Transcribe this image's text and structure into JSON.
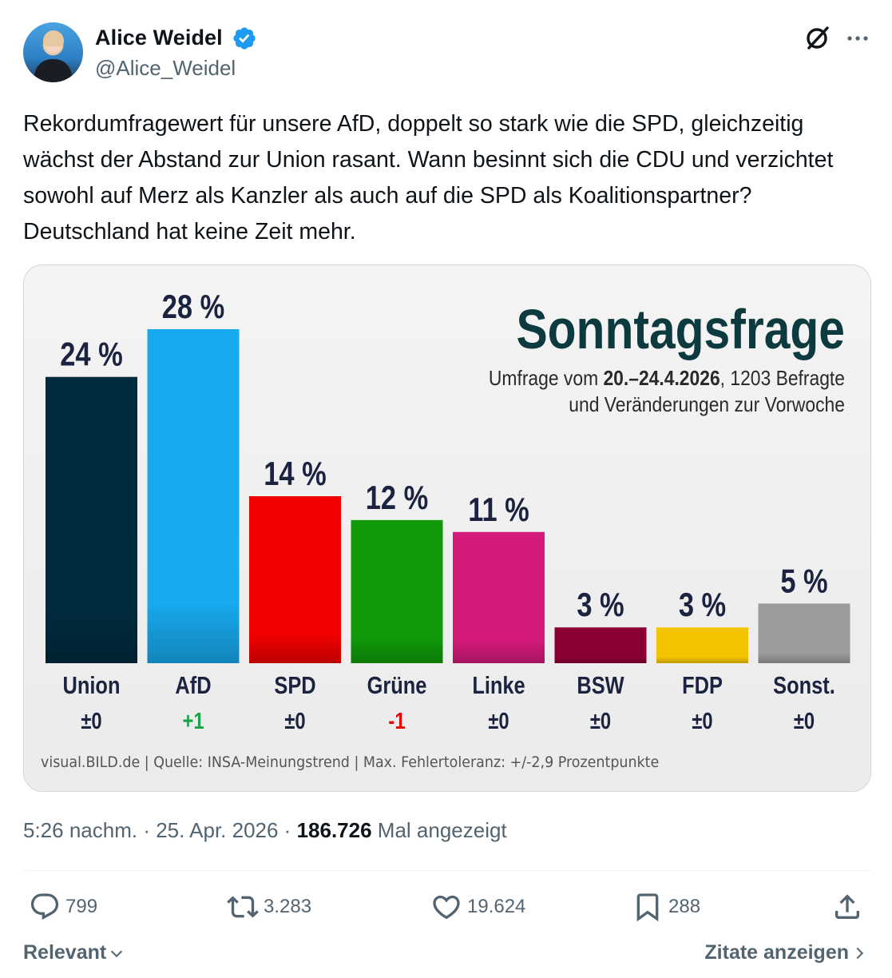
{
  "author": {
    "name": "Alice Weidel",
    "handle": "@Alice_Weidel"
  },
  "tweet": {
    "text": "Rekordumfragewert für unsere AfD, doppelt so stark wie die SPD, gleichzeitig wächst der Abstand zur Union rasant. Wann besinnt sich die CDU und verzichtet sowohl auf Merz als Kanzler als auch auf die SPD als Koalitionspartner? Deutschland hat keine Zeit mehr."
  },
  "chart_data": {
    "type": "bar",
    "title": "Sonntagsfrage",
    "subtitle_prefix": "Umfrage vom ",
    "subtitle_bold": "20.–24.4.2026",
    "subtitle_suffix": ", 1203 Befragte",
    "subtitle_line2": "und Veränderungen zur Vorwoche",
    "source": "visual.BILD.de | Quelle: INSA-Meinungstrend | Max. Fehlertoleranz: +/-2,9 Prozentpunkte",
    "categories": [
      "Union",
      "AfD",
      "SPD",
      "Grüne",
      "Linke",
      "BSW",
      "FDP",
      "Sonst."
    ],
    "values": [
      24,
      28,
      14,
      12,
      11,
      3,
      3,
      5
    ],
    "value_labels": [
      "24 %",
      "28 %",
      "14 %",
      "12 %",
      "11 %",
      "3 %",
      "3 %",
      "5 %"
    ],
    "changes": [
      "±0",
      "+1",
      "±0",
      "-1",
      "±0",
      "±0",
      "±0",
      "±0"
    ],
    "colors": [
      "#002b3d",
      "#18a9ee",
      "#f20000",
      "#109a0a",
      "#d41a7a",
      "#8a0033",
      "#f5c400",
      "#9c9c9c"
    ],
    "change_colors": [
      "#1c2340",
      "#1aa34a",
      "#1c2340",
      "#e10600",
      "#1c2340",
      "#1c2340",
      "#1c2340",
      "#1c2340"
    ],
    "ylim": [
      0,
      28
    ],
    "grid": false,
    "legend": "none"
  },
  "meta": {
    "time": "5:26 nachm.",
    "sep": " · ",
    "date": "25. Apr. 2026",
    "views_count": "186.726",
    "views_label": "Mal angezeigt"
  },
  "actions": {
    "replies": "799",
    "reposts": "3.283",
    "likes": "19.624",
    "bookmarks": "288"
  },
  "footer": {
    "sort_label": "Relevant",
    "quotes_label": "Zitate anzeigen"
  },
  "icons": {
    "verified": "verified-badge-icon",
    "grok": "grok-icon",
    "more": "more-icon",
    "reply": "reply-icon",
    "repost": "repost-icon",
    "like": "like-icon",
    "bookmark": "bookmark-icon",
    "share": "share-icon"
  }
}
